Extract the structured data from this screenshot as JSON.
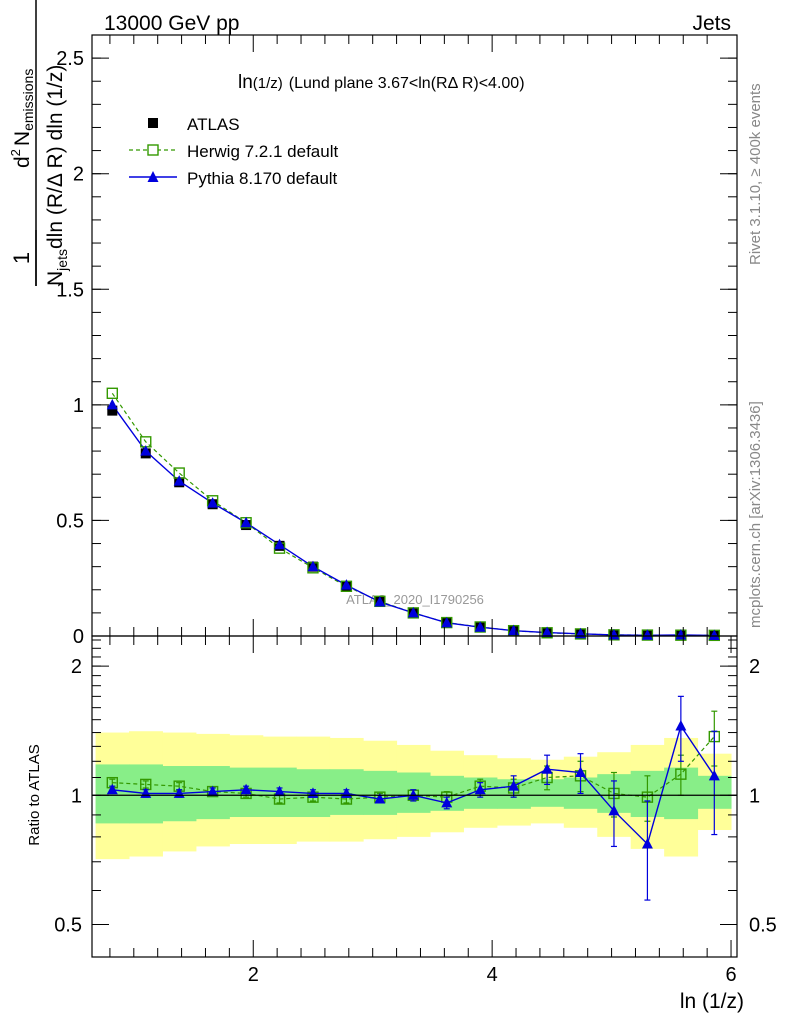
{
  "header": {
    "left": "13000 GeV pp",
    "right": "Jets"
  },
  "side_text": {
    "rivet": "Rivet 3.1.10, ≥ 400k events",
    "mcplots": "mcplots.cern.ch [arXiv:1306.3436]"
  },
  "chart_data": [
    {
      "type": "scatter",
      "title_main": "ln",
      "title_sub": "(1/z)",
      "title_rest": "(Lund plane 3.67<ln(RΔ R)<4.00)",
      "watermark": "ATLAS_2020_I1790256",
      "ylabel": {
        "frac_num": "1",
        "frac_den_a": "N",
        "frac_den_sub": "jets",
        "frac_den_b": "dln (R/Δ R) dln (1/z)",
        "d_text": "d",
        "d_sup": "2",
        "n_text": "N",
        "n_sub": "emissions"
      },
      "xlim": [
        0.65,
        6.05
      ],
      "ylim": [
        0,
        2.6
      ],
      "yticks": [
        0,
        0.5,
        1,
        1.5,
        2,
        2.5
      ],
      "ytick_labels": [
        "0",
        "0.5",
        "1",
        "1.5",
        "2",
        "2.5"
      ],
      "legend_position": "top-left",
      "x": [
        0.82,
        1.1,
        1.38,
        1.66,
        1.94,
        2.22,
        2.5,
        2.78,
        3.06,
        3.34,
        3.62,
        3.9,
        4.18,
        4.46,
        4.74,
        5.02,
        5.3,
        5.58,
        5.86
      ],
      "series": [
        {
          "name": "ATLAS",
          "color": "#000000",
          "marker": "filled-square",
          "values": [
            0.975,
            0.79,
            0.665,
            0.57,
            0.48,
            0.39,
            0.3,
            0.215,
            0.15,
            0.1,
            0.058,
            0.037,
            0.022,
            0.013,
            0.008,
            0.005,
            0.004,
            0.003,
            0.002
          ]
        },
        {
          "name": "Herwig 7.2.1 default",
          "color": "#339900",
          "marker": "open-square",
          "dashed": true,
          "values": [
            1.05,
            0.84,
            0.705,
            0.585,
            0.49,
            0.38,
            0.295,
            0.215,
            0.15,
            0.1,
            0.058,
            0.039,
            0.023,
            0.014,
            0.009,
            0.005,
            0.004,
            0.0035,
            0.0028
          ]
        },
        {
          "name": "Pythia 8.170 default",
          "color": "#0000dd",
          "marker": "filled-triangle",
          "values": [
            1.0,
            0.8,
            0.67,
            0.575,
            0.49,
            0.395,
            0.3,
            0.22,
            0.147,
            0.1,
            0.057,
            0.038,
            0.023,
            0.015,
            0.0095,
            0.0045,
            0.003,
            0.0045,
            0.0022
          ]
        }
      ]
    },
    {
      "type": "scatter",
      "ylabel": "Ratio to ATLAS",
      "xlabel": "ln (1/z)",
      "xlim": [
        0.65,
        6.05
      ],
      "ylim": [
        0.42,
        2.35
      ],
      "xticks": [
        2,
        4,
        6
      ],
      "xtick_labels": [
        "2",
        "4",
        "6"
      ],
      "yticks": [
        0.5,
        1,
        2
      ],
      "ytick_labels": [
        "0.5",
        "1",
        "2"
      ],
      "reference_line": 1,
      "bands": {
        "bin_edges": [
          0.68,
          0.96,
          1.24,
          1.52,
          1.8,
          2.08,
          2.36,
          2.64,
          2.92,
          3.2,
          3.48,
          3.76,
          4.04,
          4.32,
          4.6,
          4.88,
          5.16,
          5.44,
          5.72,
          6.0
        ],
        "yellow": {
          "color": "#ffff99",
          "lo": [
            0.71,
            0.72,
            0.74,
            0.76,
            0.77,
            0.77,
            0.78,
            0.78,
            0.79,
            0.8,
            0.82,
            0.84,
            0.85,
            0.86,
            0.84,
            0.8,
            0.75,
            0.72,
            0.83
          ],
          "hi": [
            1.4,
            1.41,
            1.4,
            1.39,
            1.38,
            1.37,
            1.37,
            1.36,
            1.34,
            1.31,
            1.27,
            1.24,
            1.22,
            1.21,
            1.23,
            1.26,
            1.31,
            1.36,
            1.25
          ]
        },
        "green": {
          "color": "#88ee88",
          "lo": [
            0.86,
            0.86,
            0.87,
            0.88,
            0.89,
            0.89,
            0.89,
            0.9,
            0.9,
            0.91,
            0.92,
            0.93,
            0.93,
            0.94,
            0.93,
            0.91,
            0.89,
            0.88,
            0.93
          ],
          "hi": [
            1.18,
            1.18,
            1.17,
            1.17,
            1.16,
            1.16,
            1.15,
            1.15,
            1.14,
            1.13,
            1.11,
            1.1,
            1.09,
            1.09,
            1.1,
            1.12,
            1.14,
            1.16,
            1.11
          ]
        }
      },
      "series": [
        {
          "name": "Herwig 7.2.1 default",
          "color": "#339900",
          "values": [
            1.07,
            1.06,
            1.05,
            1.02,
            1.01,
            0.98,
            0.99,
            0.98,
            0.99,
            1.0,
            0.99,
            1.05,
            1.04,
            1.1,
            1.11,
            1.01,
            0.99,
            1.12,
            1.37
          ],
          "err": [
            0.02,
            0.02,
            0.02,
            0.02,
            0.02,
            0.02,
            0.02,
            0.02,
            0.02,
            0.03,
            0.03,
            0.04,
            0.05,
            0.07,
            0.09,
            0.12,
            0.12,
            0.12,
            0.2
          ]
        },
        {
          "name": "Pythia 8.170 default",
          "color": "#0000dd",
          "values": [
            1.03,
            1.01,
            1.01,
            1.02,
            1.03,
            1.02,
            1.01,
            1.01,
            0.98,
            1.0,
            0.96,
            1.03,
            1.05,
            1.15,
            1.13,
            0.92,
            0.77,
            1.45,
            1.11
          ],
          "err": [
            0.02,
            0.02,
            0.02,
            0.02,
            0.02,
            0.02,
            0.02,
            0.02,
            0.02,
            0.03,
            0.03,
            0.04,
            0.06,
            0.09,
            0.12,
            0.16,
            0.2,
            0.25,
            0.3
          ]
        }
      ]
    }
  ]
}
